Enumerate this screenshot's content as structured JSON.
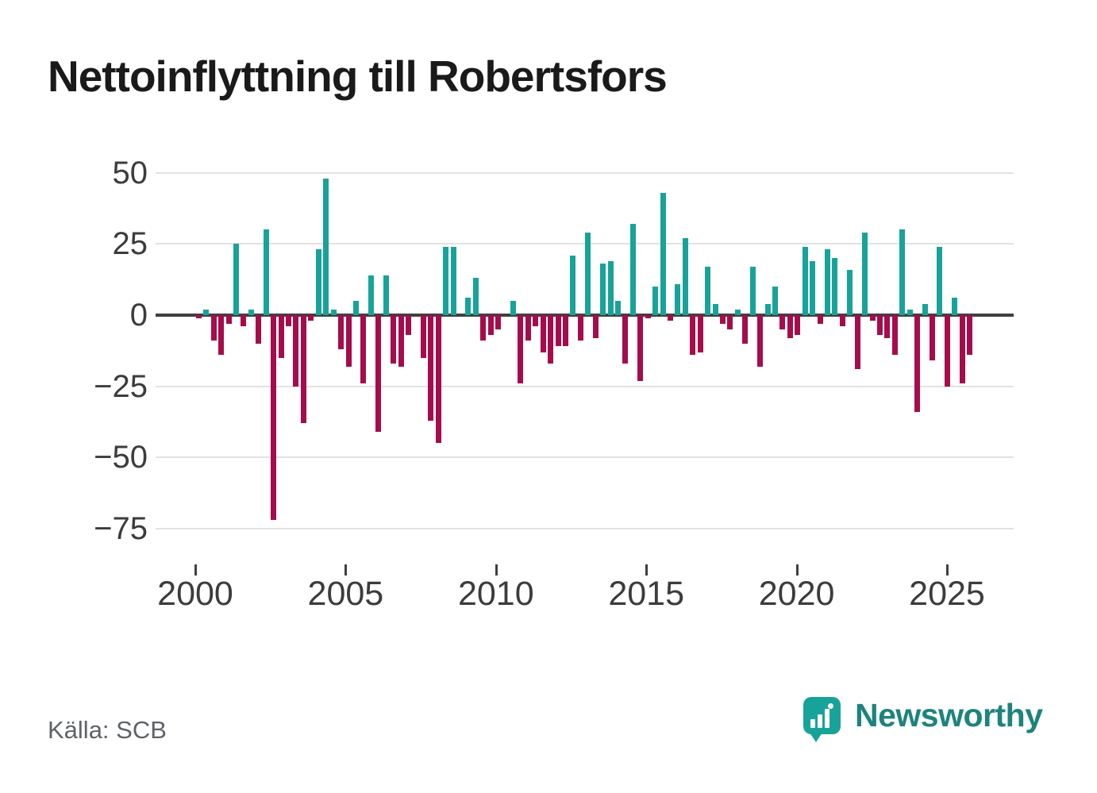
{
  "title": "Nettoinflyttning till Robertsfors",
  "source": "Källa: SCB",
  "branding": {
    "wordmark": "Newsworthy"
  },
  "colors": {
    "positive": "#18a39a",
    "negative": "#a60c4b",
    "zero_line": "#3f3f3f",
    "gridline": "#e2e2e2",
    "axis_text": "#3c3c3c",
    "title_text": "#1a1a1a",
    "source_text": "#5f6368",
    "badge": "#18a39a",
    "wordmark_text": "#1d837d"
  },
  "chart_data": {
    "type": "bar",
    "title": "Nettoinflyttning till Robertsfors",
    "frequency": "quarterly",
    "x_start": "2000-Q1",
    "x_end": "2025-Q4",
    "x_tick_years": [
      2000,
      2005,
      2010,
      2015,
      2020,
      2025
    ],
    "y_ticks": [
      50,
      25,
      0,
      -25,
      -50,
      -75
    ],
    "y_tick_labels": [
      "50",
      "25",
      "0",
      "−25",
      "−50",
      "−75"
    ],
    "ylim": [
      -80,
      55
    ],
    "grid": true,
    "legend": "none",
    "series": [
      {
        "name": "Nettoinflyttning per kvartal",
        "values": [
          -1,
          2,
          -9,
          -14,
          -3,
          25,
          -4,
          2,
          -10,
          30,
          -72,
          -15,
          -4,
          -25,
          -38,
          -2,
          23,
          48,
          2,
          -12,
          -18,
          5,
          -24,
          14,
          -41,
          14,
          -17,
          -18,
          -7,
          0,
          -15,
          -37,
          -45,
          24,
          24,
          0,
          6,
          13,
          -9,
          -7,
          -5,
          0,
          5,
          -24,
          -9,
          -4,
          -13,
          -17,
          -11,
          -11,
          21,
          -9,
          29,
          -8,
          18,
          19,
          5,
          -17,
          32,
          -23,
          -1,
          10,
          43,
          -2,
          11,
          27,
          -14,
          -13,
          17,
          4,
          -3,
          -5,
          2,
          -10,
          17,
          -18,
          4,
          10,
          -5,
          -8,
          -7,
          24,
          19,
          -3,
          23,
          20,
          -4,
          16,
          -19,
          29,
          -2,
          -7,
          -8,
          -14,
          30,
          2,
          -34,
          4,
          -16,
          24,
          -25,
          6,
          -24,
          -14
        ]
      }
    ]
  }
}
